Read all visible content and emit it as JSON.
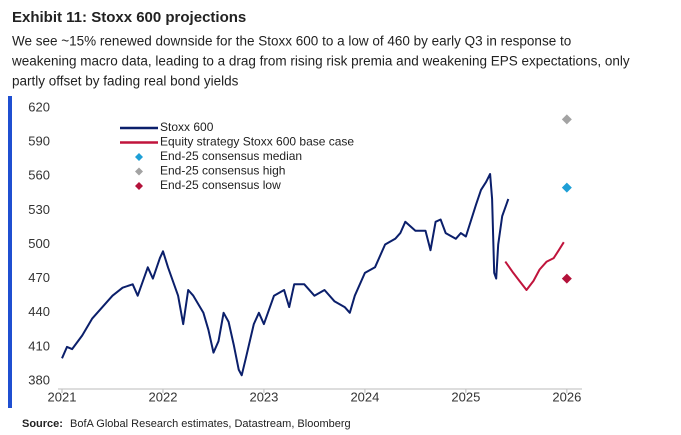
{
  "chart_data": {
    "type": "line",
    "title": "Exhibit 11: Stoxx 600 projections",
    "subtitle": [
      "We see ~15% renewed downside for the Stoxx 600 to a low of 460 by early Q3 in response to",
      "weakening macro data, leading to a drag from rising risk premia and weakening EPS expectations, only",
      "partly offset by fading real bond yields"
    ],
    "source_label": "Source:",
    "source": "BofA Global Research estimates, Datastream, Bloomberg",
    "xlim": [
      2021,
      2026.15
    ],
    "xticks": [
      2021,
      2022,
      2023,
      2024,
      2025,
      2026
    ],
    "ylim": [
      380,
      620
    ],
    "yticks": [
      380,
      410,
      440,
      470,
      500,
      530,
      560,
      590,
      620
    ],
    "grid": false,
    "series": [
      {
        "name": "Stoxx 600",
        "color": "#0b1f6b",
        "x": [
          2021.0,
          2021.05,
          2021.1,
          2021.2,
          2021.3,
          2021.4,
          2021.5,
          2021.6,
          2021.7,
          2021.75,
          2021.85,
          2021.9,
          2021.97,
          2022.0,
          2022.05,
          2022.15,
          2022.2,
          2022.25,
          2022.3,
          2022.4,
          2022.45,
          2022.5,
          2022.55,
          2022.6,
          2022.65,
          2022.7,
          2022.75,
          2022.78,
          2022.82,
          2022.9,
          2022.95,
          2023.0,
          2023.1,
          2023.2,
          2023.25,
          2023.3,
          2023.4,
          2023.5,
          2023.6,
          2023.7,
          2023.8,
          2023.85,
          2023.9,
          2024.0,
          2024.1,
          2024.2,
          2024.3,
          2024.35,
          2024.4,
          2024.5,
          2024.6,
          2024.65,
          2024.7,
          2024.75,
          2024.8,
          2024.9,
          2024.95,
          2025.0,
          2025.1,
          2025.15,
          2025.2,
          2025.24,
          2025.26,
          2025.28,
          2025.3,
          2025.32,
          2025.36,
          2025.4,
          2025.42
        ],
        "values": [
          400,
          410,
          408,
          420,
          435,
          445,
          455,
          462,
          465,
          455,
          480,
          470,
          488,
          494,
          480,
          455,
          430,
          460,
          455,
          440,
          425,
          405,
          415,
          440,
          432,
          412,
          390,
          385,
          400,
          430,
          440,
          430,
          455,
          460,
          445,
          465,
          465,
          455,
          460,
          450,
          445,
          440,
          455,
          475,
          480,
          500,
          505,
          510,
          520,
          512,
          512,
          495,
          520,
          522,
          510,
          505,
          510,
          507,
          535,
          548,
          555,
          562,
          540,
          475,
          470,
          500,
          525,
          535,
          540
        ]
      },
      {
        "name": "Equity strategy Stoxx 600 base case",
        "color": "#c0143c",
        "x": [
          2025.39,
          2025.47,
          2025.53,
          2025.6,
          2025.67,
          2025.73,
          2025.8,
          2025.87,
          2025.92,
          2025.97
        ],
        "values": [
          485,
          475,
          468,
          460,
          468,
          478,
          485,
          488,
          495,
          502
        ]
      }
    ],
    "points": [
      {
        "name": "End-25 consensus median",
        "color": "#1e9fd6",
        "x": 2026.0,
        "value": 550
      },
      {
        "name": "End-25 consensus high",
        "color": "#a3a3a3",
        "x": 2026.0,
        "value": 610
      },
      {
        "name": "End-25 consensus low",
        "color": "#b3123a",
        "x": 2026.0,
        "value": 470
      }
    ]
  }
}
